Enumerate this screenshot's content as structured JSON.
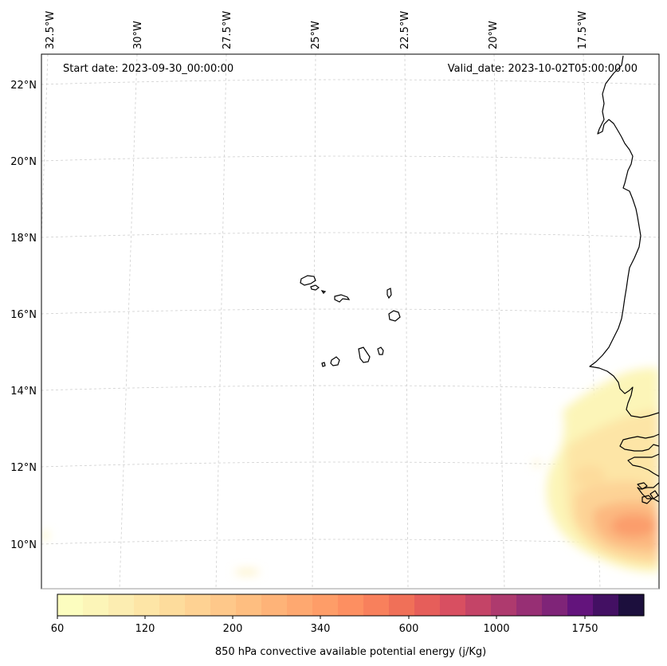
{
  "map": {
    "start_date": "Start date: 2023-09-30_00:00:00",
    "valid_date": "Valid_date: 2023-10-02T05:00:00.00",
    "lon_labels": [
      "32.5°W",
      "30°W",
      "27.5°W",
      "25°W",
      "22.5°W",
      "20°W",
      "17.5°W"
    ],
    "lat_labels": [
      "22°N",
      "20°N",
      "18°N",
      "16°N",
      "14°N",
      "12°N",
      "10°N"
    ]
  },
  "colorbar": {
    "title": "850 hPa convective available potential energy (j/Kg)",
    "tick_labels": [
      "60",
      "120",
      "200",
      "340",
      "600",
      "1000",
      "1750"
    ],
    "colors": [
      "#fcfdbf",
      "#fcf5b8",
      "#fcedb1",
      "#fde5a6",
      "#fddc9c",
      "#fed293",
      "#fec88a",
      "#febe80",
      "#feb378",
      "#fea870",
      "#fe9d68",
      "#fd8f61",
      "#f8805c",
      "#f07058",
      "#e65e5a",
      "#d84f61",
      "#c44467",
      "#ae3a6e",
      "#972f74",
      "#7f2478",
      "#63147c",
      "#431063",
      "#1c0f3d"
    ]
  },
  "legend_colors": {
    "coastline": "#000000",
    "gridline": "#cccccc"
  }
}
